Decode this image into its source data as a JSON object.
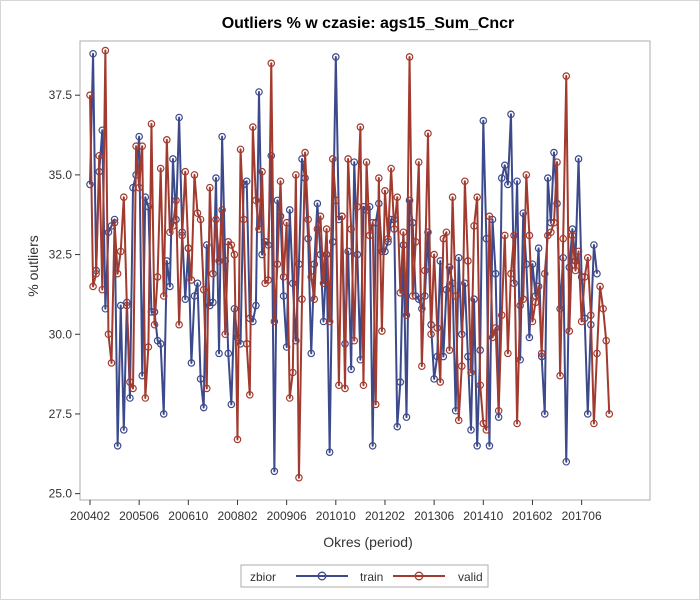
{
  "chart_data": {
    "type": "line",
    "title": "Outliers % w czasie: ags15_Sum_Cncr",
    "xlabel": "Okres (period)",
    "ylabel": "% outliers",
    "x_tick_labels": [
      "200402",
      "200506",
      "200610",
      "200802",
      "200906",
      "201010",
      "201202",
      "201306",
      "201410",
      "201602",
      "201706"
    ],
    "x_tick_index": [
      0,
      16,
      32,
      48,
      64,
      80,
      96,
      112,
      128,
      144,
      160
    ],
    "y_ticks": [
      25.0,
      27.5,
      30.0,
      32.5,
      35.0,
      37.5
    ],
    "y_tick_labels": [
      "25.0",
      "27.5",
      "30.0",
      "32.5",
      "35.0",
      "37.5"
    ],
    "ylim": [
      24.8,
      39.2
    ],
    "x_count": 180,
    "grid": false,
    "legend": {
      "title": "zbior",
      "position": "bottom-center"
    },
    "series": [
      {
        "name": "train",
        "color": "#3c4a8c",
        "values": [
          34.7,
          38.8,
          32.0,
          35.1,
          36.4,
          30.8,
          33.2,
          33.4,
          33.6,
          26.5,
          30.9,
          27.0,
          31.0,
          28.0,
          34.6,
          35.0,
          36.2,
          28.7,
          34.3,
          34.0,
          30.7,
          30.7,
          29.8,
          29.7,
          27.5,
          32.3,
          31.5,
          35.5,
          33.6,
          36.8,
          33.2,
          31.1,
          32.7,
          29.1,
          31.2,
          31.6,
          28.6,
          27.7,
          32.8,
          30.9,
          31.0,
          34.9,
          29.4,
          36.2,
          32.3,
          29.4,
          27.8,
          30.8,
          29.9,
          29.7,
          34.7,
          34.8,
          30.5,
          30.4,
          30.9,
          37.6,
          32.5,
          32.9,
          32.8,
          35.6,
          25.7,
          34.2,
          33.7,
          31.2,
          29.6,
          33.9,
          31.6,
          29.8,
          32.2,
          35.5,
          34.9,
          33.0,
          29.4,
          32.2,
          34.1,
          32.5,
          30.4,
          32.5,
          26.3,
          32.9,
          38.7,
          33.6,
          33.7,
          29.7,
          32.6,
          28.9,
          35.4,
          32.5,
          29.2,
          34.0,
          33.9,
          34.0,
          26.5,
          33.5,
          34.1,
          32.6,
          32.6,
          32.9,
          33.6,
          33.6,
          27.1,
          28.5,
          32.8,
          27.4,
          34.2,
          33.5,
          31.2,
          31.1,
          30.8,
          31.2,
          33.2,
          30.3,
          28.6,
          29.3,
          32.3,
          29.3,
          31.4,
          32.1,
          31.6,
          27.6,
          32.4,
          30.0,
          31.6,
          29.3,
          27.0,
          31.1,
          26.5,
          29.5,
          36.7,
          33.0,
          26.5,
          33.6,
          31.9,
          27.4,
          34.9,
          35.3,
          34.7,
          36.9,
          31.6,
          34.8,
          29.2,
          33.8,
          32.2,
          29.9,
          32.2,
          31.2,
          32.7,
          29.3,
          27.5,
          34.9,
          33.5,
          35.7,
          34.1,
          30.8,
          32.4,
          26.0,
          32.1,
          33.3,
          32.3,
          35.5,
          31.8,
          30.5,
          27.5,
          30.3,
          32.8,
          31.9
        ]
      },
      {
        "name": "valid",
        "color": "#a23b2f",
        "values": [
          37.5,
          31.5,
          31.9,
          35.6,
          31.4,
          38.9,
          30.0,
          29.1,
          33.5,
          31.9,
          32.6,
          34.3,
          30.9,
          28.5,
          28.3,
          35.9,
          34.6,
          35.9,
          28.0,
          29.6,
          36.6,
          30.3,
          31.8,
          35.2,
          31.2,
          36.1,
          33.2,
          33.4,
          34.2,
          30.3,
          33.1,
          35.1,
          32.7,
          31.7,
          35.0,
          33.8,
          33.6,
          31.4,
          28.3,
          34.6,
          31.9,
          33.6,
          32.3,
          33.9,
          30.0,
          32.9,
          32.8,
          32.5,
          26.7,
          35.8,
          33.6,
          29.7,
          28.1,
          36.5,
          34.2,
          33.3,
          35.1,
          31.6,
          31.7,
          38.5,
          30.4,
          32.2,
          34.8,
          31.8,
          33.5,
          28.0,
          28.8,
          35.0,
          25.5,
          31.1,
          35.7,
          33.6,
          31.8,
          31.1,
          33.3,
          33.7,
          31.6,
          33.3,
          30.4,
          35.5,
          34.2,
          28.4,
          33.7,
          28.3,
          35.5,
          33.3,
          29.8,
          34.0,
          36.5,
          28.4,
          35.4,
          33.1,
          33.5,
          27.8,
          34.9,
          30.1,
          34.5,
          33.0,
          35.2,
          33.3,
          34.3,
          31.3,
          33.2,
          30.6,
          38.7,
          31.2,
          32.9,
          35.4,
          29.0,
          32.0,
          36.3,
          30.0,
          32.5,
          30.2,
          28.5,
          33.0,
          33.2,
          29.5,
          34.3,
          31.2,
          27.3,
          29.0,
          34.8,
          32.3,
          28.8,
          33.4,
          34.3,
          28.4,
          27.2,
          27.0,
          33.7,
          29.9,
          30.2,
          27.6,
          30.6,
          33.1,
          29.4,
          31.9,
          33.1,
          27.2,
          30.9,
          31.1,
          35.0,
          33.1,
          30.4,
          31.0,
          31.5,
          29.4,
          31.9,
          33.1,
          33.2,
          33.5,
          35.4,
          28.7,
          33.0,
          38.1,
          30.1,
          33.1,
          32.0,
          32.6,
          30.4,
          31.8,
          32.4,
          30.6,
          27.2,
          29.4,
          31.5,
          30.8,
          29.8,
          27.5
        ]
      }
    ]
  }
}
